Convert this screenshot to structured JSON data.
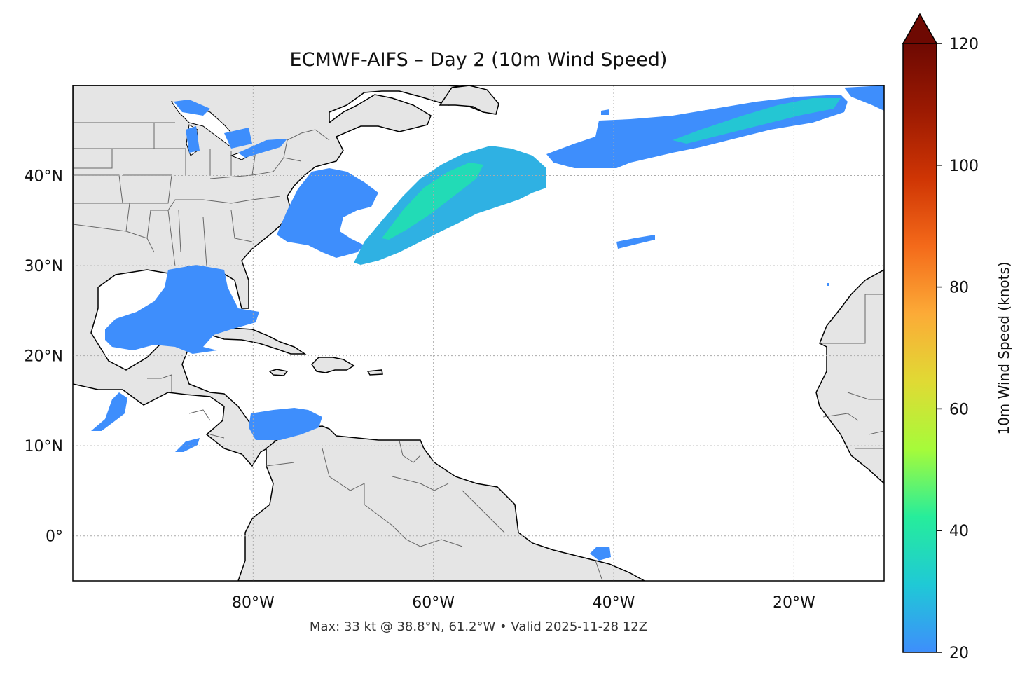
{
  "title": "ECMWF-AIFS – Day 2 (10m Wind Speed)",
  "footer": "Max: 33 kt @ 38.8°N, 61.2°W • Valid 2025-11-28 12Z",
  "map": {
    "lon_range": [
      -100,
      -10
    ],
    "lat_range": [
      -5,
      50
    ],
    "x_ticks": [
      {
        "lon": -80,
        "label": "80°W"
      },
      {
        "lon": -60,
        "label": "60°W"
      },
      {
        "lon": -40,
        "label": "40°W"
      },
      {
        "lon": -20,
        "label": "20°W"
      }
    ],
    "y_ticks": [
      {
        "lat": 0,
        "label": "0°"
      },
      {
        "lat": 10,
        "label": "10°N"
      },
      {
        "lat": 20,
        "label": "20°N"
      },
      {
        "lat": 30,
        "label": "30°N"
      },
      {
        "lat": 40,
        "label": "40°N"
      }
    ],
    "grid": true,
    "land_color": "#e5e5e5",
    "ocean_color": "#ffffff"
  },
  "colorbar": {
    "label": "10m Wind Speed (knots)",
    "range": [
      20,
      120
    ],
    "ticks": [
      {
        "value": 20,
        "label": "20"
      },
      {
        "value": 40,
        "label": "40"
      },
      {
        "value": 60,
        "label": "60"
      },
      {
        "value": 80,
        "label": "80"
      },
      {
        "value": 100,
        "label": "100"
      },
      {
        "value": 120,
        "label": "120"
      }
    ],
    "extend": "max",
    "colors": [
      "#3e8efc",
      "#1fc9d6",
      "#26ed9b",
      "#a6fb3a",
      "#e0da34",
      "#fcab37",
      "#f46a1a",
      "#cf3504",
      "#9c1a02",
      "#6e0902"
    ]
  },
  "wind": {
    "max_kt": 33,
    "max_lat": 38.8,
    "max_lon": -61.2
  }
}
